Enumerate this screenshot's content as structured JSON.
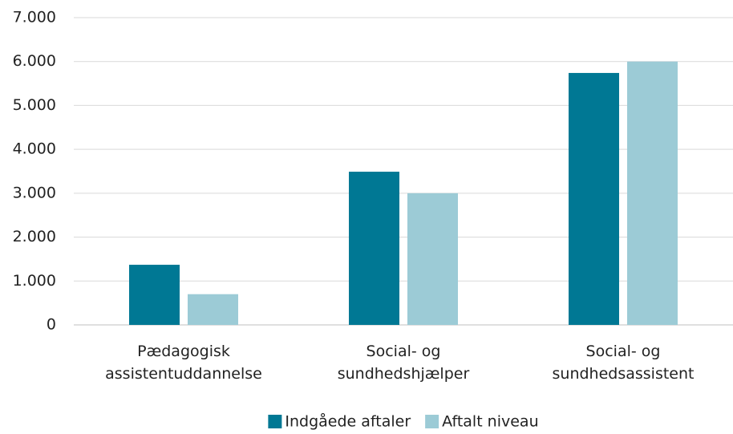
{
  "chart_data": {
    "type": "bar",
    "categories": [
      "Pædagogisk\nassistentuddannelse",
      "Social- og\nsundhedshjælper",
      "Social- og\nsundhedsassistent"
    ],
    "series": [
      {
        "name": "Indgåede aftaler",
        "color": "#007894",
        "values": [
          1370,
          3490,
          5740
        ]
      },
      {
        "name": "Aftalt niveau",
        "color": "#9ccbd6",
        "values": [
          700,
          3000,
          6000
        ]
      }
    ],
    "ylim": [
      0,
      7000
    ],
    "yticks": [
      0,
      {
        "value": 1000,
        "label": "1.000"
      },
      {
        "value": 2000,
        "label": "2.000"
      },
      {
        "value": 3000,
        "label": "3.000"
      },
      {
        "value": 4000,
        "label": "4.000"
      },
      {
        "value": 5000,
        "label": "5.000"
      },
      {
        "value": 6000,
        "label": "6.000"
      },
      {
        "value": 7000,
        "label": "7.000"
      }
    ],
    "grid": true,
    "legend": "bottom"
  }
}
